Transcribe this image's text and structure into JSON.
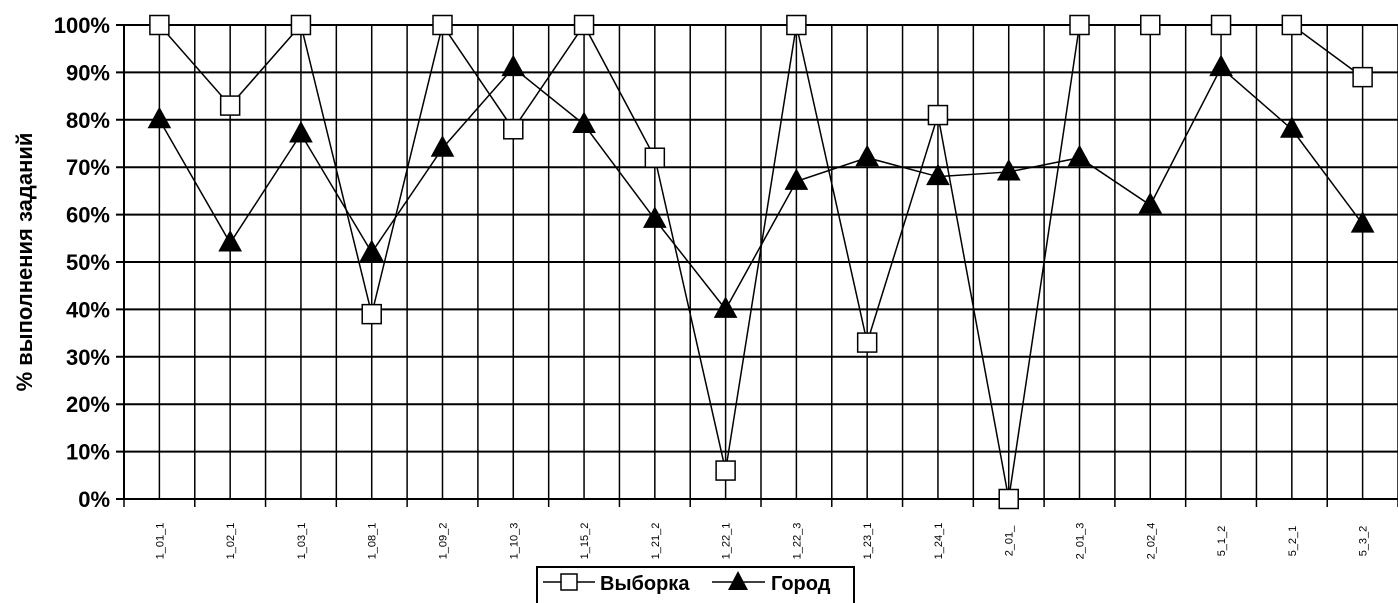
{
  "chart_data": {
    "type": "line",
    "ylabel": "% выполнения заданий",
    "xlabel": "",
    "ylim": [
      0,
      100
    ],
    "yticks": [
      "0%",
      "10%",
      "20%",
      "30%",
      "40%",
      "50%",
      "60%",
      "70%",
      "80%",
      "90%",
      "100%"
    ],
    "grid": true,
    "legend_position": "bottom",
    "categories": [
      "1_01_1",
      "1_02_1",
      "1_03_1",
      "1_08_1",
      "1_09_2",
      "1_10_3",
      "1_15_2",
      "1_21_2",
      "1_22_1",
      "1_22_3",
      "1_23_1",
      "1_24_1",
      "2_01_",
      "2_01_3",
      "2_02_4",
      "5_1_2",
      "5_2_1",
      "5_3_2"
    ],
    "series": [
      {
        "name": "Выборка",
        "marker": "square-open",
        "values": [
          100,
          83,
          100,
          39,
          100,
          78,
          100,
          72,
          6,
          100,
          33,
          81,
          0,
          100,
          100,
          100,
          100,
          89
        ]
      },
      {
        "name": "Город",
        "marker": "triangle-filled",
        "values": [
          80,
          54,
          77,
          52,
          74,
          91,
          79,
          59,
          40,
          67,
          72,
          68,
          69,
          72,
          62,
          91,
          78,
          58
        ]
      }
    ]
  }
}
